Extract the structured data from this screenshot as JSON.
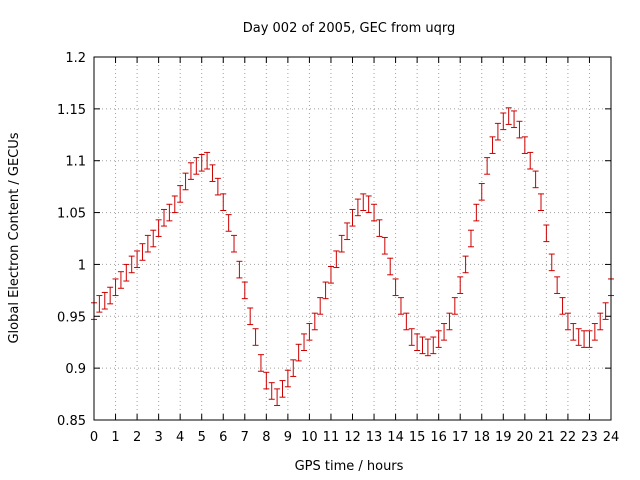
{
  "chart_data": {
    "type": "scatter",
    "title": "Day 002 of 2005, GEC from uqrg",
    "xlabel": "GPS time / hours",
    "ylabel": "Global Electron Content / GECUs",
    "xlim": [
      0,
      24
    ],
    "ylim": [
      0.85,
      1.2
    ],
    "xticks": [
      "0",
      "1",
      "2",
      "3",
      "4",
      "5",
      "6",
      "7",
      "8",
      "9",
      "10",
      "11",
      "12",
      "13",
      "14",
      "15",
      "16",
      "17",
      "18",
      "19",
      "20",
      "21",
      "22",
      "23",
      "24"
    ],
    "yticks": [
      "0.85",
      "0.9",
      "0.95",
      "1",
      "1.05",
      "1.1",
      "1.15",
      "1.2"
    ],
    "grid": true,
    "error_bar": 0.008,
    "series": [
      {
        "color": "#cc0000",
        "x": [
          0,
          0.25,
          0.5,
          0.75,
          1,
          1.25,
          1.5,
          1.75,
          2,
          2.25,
          2.5,
          2.75,
          3,
          3.25,
          3.5,
          3.75,
          4,
          4.25,
          4.5,
          4.75,
          5,
          5.25,
          5.5,
          5.75,
          6,
          6.25,
          6.5,
          6.75,
          7,
          7.25,
          7.5,
          7.75,
          8,
          8.25,
          8.5,
          8.75,
          9,
          9.25,
          9.5,
          9.75,
          10,
          10.25,
          10.5,
          10.75,
          11,
          11.25,
          11.5,
          11.75,
          12,
          12.25,
          12.5,
          12.75,
          13,
          13.25,
          13.5,
          13.75,
          14,
          14.25,
          14.5,
          14.75,
          15,
          15.25,
          15.5,
          15.75,
          16,
          16.25,
          16.5,
          16.75,
          17,
          17.25,
          17.5,
          17.75,
          18,
          18.25,
          18.5,
          18.75,
          19,
          19.25,
          19.5,
          19.75,
          20,
          20.25,
          20.5,
          20.75,
          21,
          21.25,
          21.5,
          21.75,
          22,
          22.25,
          22.5,
          22.75,
          23,
          23.25,
          23.5,
          23.75,
          24
        ],
        "y": [
          0.955,
          0.962,
          0.965,
          0.97,
          0.978,
          0.985,
          0.992,
          1.0,
          1.005,
          1.012,
          1.02,
          1.025,
          1.035,
          1.045,
          1.05,
          1.058,
          1.068,
          1.08,
          1.09,
          1.095,
          1.098,
          1.1,
          1.088,
          1.075,
          1.06,
          1.04,
          1.02,
          0.995,
          0.975,
          0.95,
          0.93,
          0.905,
          0.888,
          0.878,
          0.872,
          0.88,
          0.89,
          0.9,
          0.915,
          0.925,
          0.935,
          0.945,
          0.96,
          0.975,
          0.99,
          1.005,
          1.02,
          1.032,
          1.045,
          1.055,
          1.06,
          1.058,
          1.05,
          1.035,
          1.018,
          0.998,
          0.978,
          0.96,
          0.945,
          0.93,
          0.925,
          0.922,
          0.92,
          0.922,
          0.928,
          0.935,
          0.945,
          0.96,
          0.98,
          1.0,
          1.025,
          1.05,
          1.07,
          1.095,
          1.115,
          1.128,
          1.138,
          1.143,
          1.14,
          1.13,
          1.115,
          1.1,
          1.082,
          1.06,
          1.03,
          1.002,
          0.98,
          0.96,
          0.945,
          0.935,
          0.93,
          0.928,
          0.928,
          0.935,
          0.945,
          0.955,
          0.978
        ]
      }
    ]
  }
}
